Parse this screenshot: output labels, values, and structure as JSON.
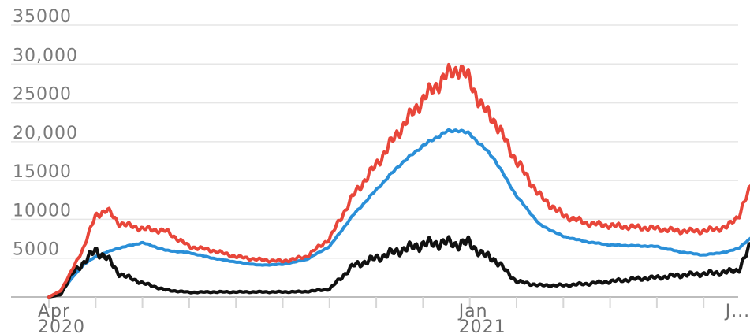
{
  "chart_data": {
    "type": "line",
    "title": "",
    "xlabel": "",
    "ylabel": "",
    "ylim": [
      0,
      35000
    ],
    "yticks": [
      {
        "value": 5000,
        "label": "5000"
      },
      {
        "value": 10000,
        "label": "10000"
      },
      {
        "value": 15000,
        "label": "15000"
      },
      {
        "value": 20000,
        "label": "20,000"
      },
      {
        "value": 25000,
        "label": "25000"
      },
      {
        "value": 30000,
        "label": "30,000"
      },
      {
        "value": 35000,
        "label": "35000"
      }
    ],
    "xticks": [
      {
        "month": 0,
        "line1": "Apr",
        "line2": "2020"
      },
      {
        "month": 9,
        "line1": "Jan",
        "line2": "2021"
      },
      {
        "month": 14.7,
        "line1": "J...",
        "line2": ""
      }
    ],
    "grid": true,
    "x_months": [
      0,
      0.25,
      0.5,
      0.75,
      1,
      1.25,
      1.5,
      2,
      2.5,
      3,
      3.5,
      4,
      4.5,
      5,
      5.5,
      6,
      6.5,
      7,
      7.5,
      8,
      8.5,
      8.75,
      9,
      9.25,
      9.5,
      10,
      10.5,
      11,
      11.5,
      12,
      12.5,
      13,
      13.5,
      14,
      14.5,
      14.75,
      15,
      15.2
    ],
    "series": [
      {
        "color": "#e8463a",
        "values": [
          0,
          800,
          3500,
          6500,
          10500,
          11200,
          9500,
          8800,
          8500,
          6500,
          6000,
          5200,
          4800,
          4600,
          5200,
          7500,
          13000,
          17000,
          21500,
          25500,
          28500,
          29500,
          28000,
          24500,
          23000,
          17500,
          13000,
          10500,
          9500,
          9200,
          9000,
          8800,
          8500,
          8500,
          9000,
          10500,
          14000,
          17800
        ]
      },
      {
        "color": "#2a8fd8",
        "values": [
          0,
          500,
          2500,
          4200,
          5200,
          5800,
          6300,
          7000,
          6000,
          5700,
          5000,
          4500,
          4100,
          4200,
          4800,
          6500,
          10500,
          13800,
          17000,
          19500,
          21300,
          21500,
          21000,
          19500,
          18000,
          13000,
          9300,
          7800,
          7100,
          6700,
          6600,
          6500,
          5800,
          5400,
          5800,
          6300,
          7500,
          9000
        ]
      },
      {
        "color": "#111111",
        "values": [
          0,
          300,
          3000,
          4500,
          6000,
          5000,
          3000,
          1800,
          900,
          600,
          650,
          650,
          650,
          650,
          700,
          1000,
          4000,
          5000,
          6000,
          6800,
          7000,
          6800,
          7000,
          5500,
          5000,
          2000,
          1500,
          1500,
          1700,
          2000,
          2300,
          2500,
          2800,
          3000,
          3200,
          3500,
          6500,
          8800
        ]
      }
    ]
  }
}
